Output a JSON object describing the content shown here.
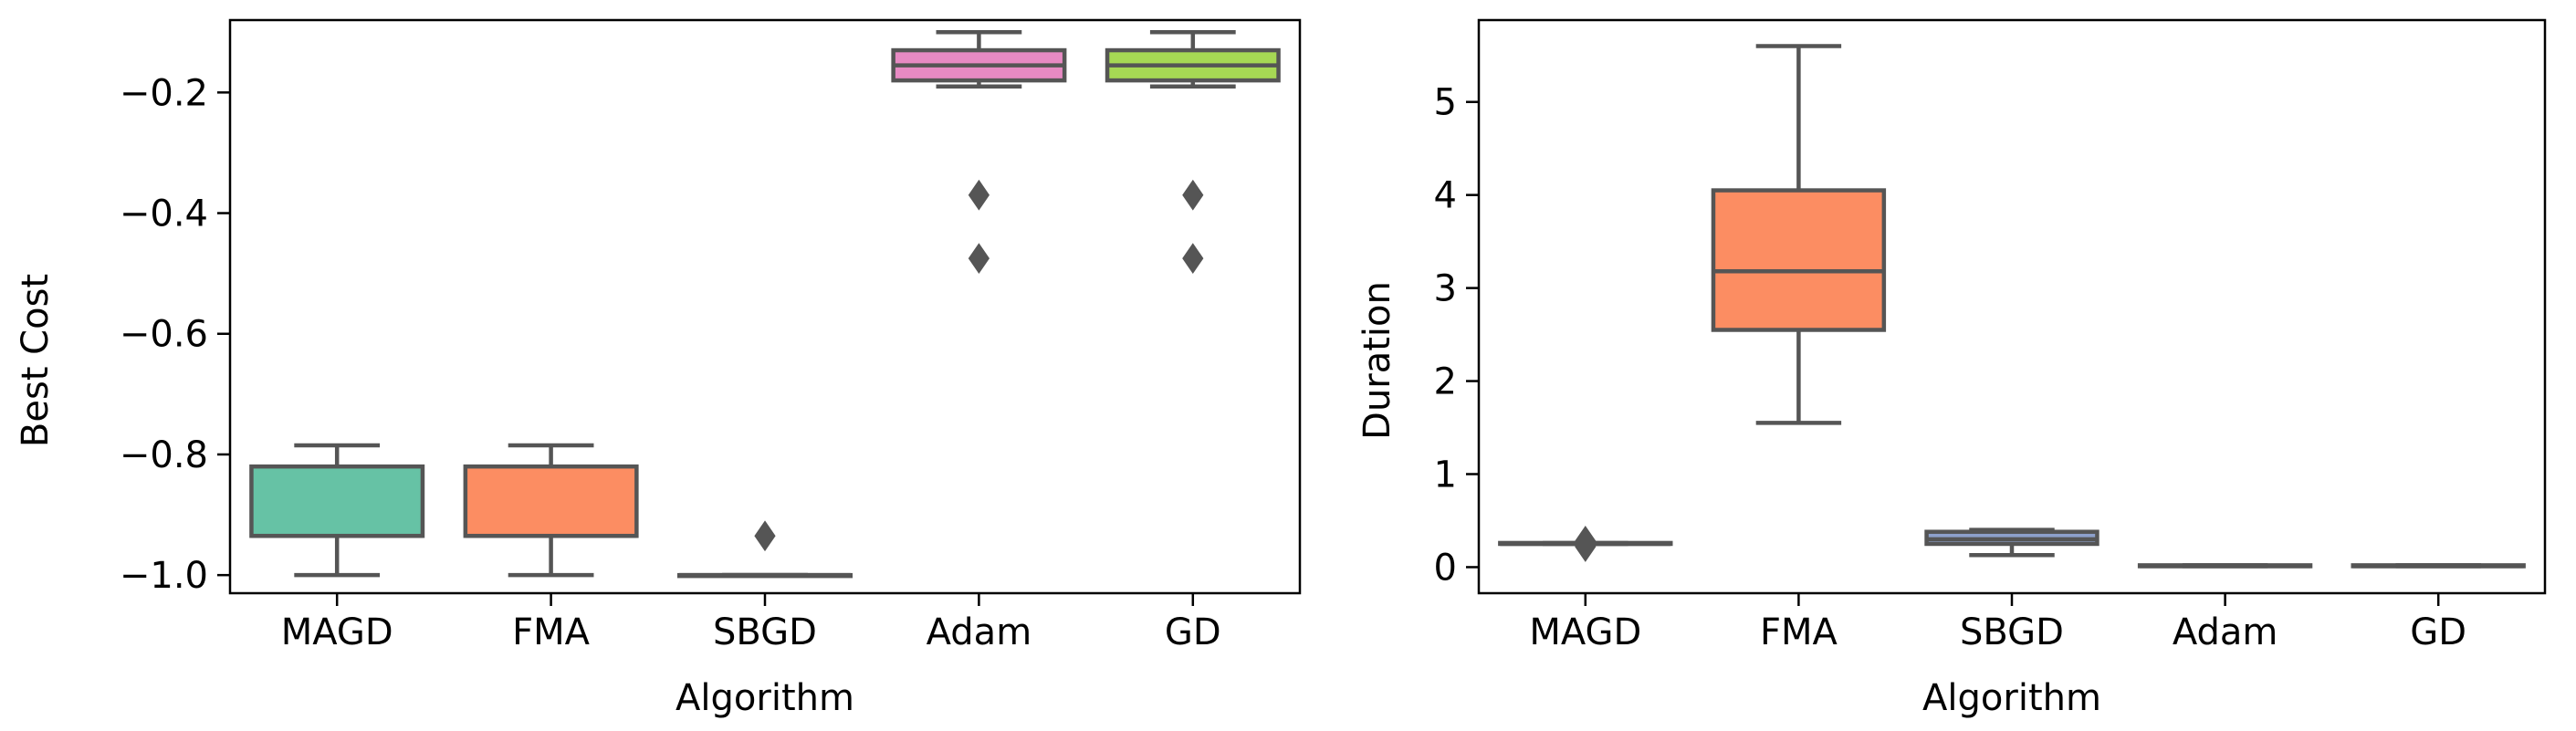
{
  "chart_data": [
    {
      "type": "box",
      "title": "",
      "xlabel": "Algorithm",
      "ylabel": "Best Cost",
      "categories": [
        "MAGD",
        "FMA",
        "SBGD",
        "Adam",
        "GD"
      ],
      "colors": [
        "#66c2a5",
        "#fc8d62",
        "#8da0cb",
        "#e78ac3",
        "#a6d854"
      ],
      "ylim": [
        -1.03,
        -0.08
      ],
      "yticks": [
        -1.0,
        -0.8,
        -0.6,
        -0.4,
        -0.2
      ],
      "ytick_labels": [
        "−1.0",
        "−0.8",
        "−0.6",
        "−0.4",
        "−0.2"
      ],
      "boxes": [
        {
          "name": "MAGD",
          "whisker_low": -1.0,
          "q1": -0.935,
          "median": -0.935,
          "q3": -0.82,
          "whisker_high": -0.785,
          "outliers": []
        },
        {
          "name": "FMA",
          "whisker_low": -1.0,
          "q1": -0.935,
          "median": -0.935,
          "q3": -0.82,
          "whisker_high": -0.785,
          "outliers": []
        },
        {
          "name": "SBGD",
          "whisker_low": -1.0,
          "q1": -1.0,
          "median": -1.0,
          "q3": -1.0,
          "whisker_high": -1.0,
          "outliers": [
            -0.935
          ]
        },
        {
          "name": "Adam",
          "whisker_low": -0.19,
          "q1": -0.18,
          "median": -0.155,
          "q3": -0.13,
          "whisker_high": -0.1,
          "outliers": [
            -0.37,
            -0.475
          ]
        },
        {
          "name": "GD",
          "whisker_low": -0.19,
          "q1": -0.18,
          "median": -0.155,
          "q3": -0.13,
          "whisker_high": -0.1,
          "outliers": [
            -0.37,
            -0.475
          ]
        }
      ]
    },
    {
      "type": "box",
      "title": "",
      "xlabel": "Algorithm",
      "ylabel": "Duration",
      "categories": [
        "MAGD",
        "FMA",
        "SBGD",
        "Adam",
        "GD"
      ],
      "colors": [
        "#66c2a5",
        "#fc8d62",
        "#8da0cb",
        "#e78ac3",
        "#a6d854"
      ],
      "ylim": [
        -0.28,
        5.88
      ],
      "yticks": [
        0,
        1,
        2,
        3,
        4,
        5
      ],
      "ytick_labels": [
        "0",
        "1",
        "2",
        "3",
        "4",
        "5"
      ],
      "boxes": [
        {
          "name": "MAGD",
          "whisker_low": 0.25,
          "q1": 0.25,
          "median": 0.25,
          "q3": 0.26,
          "whisker_high": 0.26,
          "outliers": [
            0.28,
            0.22
          ]
        },
        {
          "name": "FMA",
          "whisker_low": 1.55,
          "q1": 2.55,
          "median": 3.18,
          "q3": 4.05,
          "whisker_high": 5.6,
          "outliers": []
        },
        {
          "name": "SBGD",
          "whisker_low": 0.13,
          "q1": 0.25,
          "median": 0.3,
          "q3": 0.38,
          "whisker_high": 0.4,
          "outliers": []
        },
        {
          "name": "Adam",
          "whisker_low": 0.01,
          "q1": 0.01,
          "median": 0.01,
          "q3": 0.02,
          "whisker_high": 0.02,
          "outliers": []
        },
        {
          "name": "GD",
          "whisker_low": 0.01,
          "q1": 0.01,
          "median": 0.01,
          "q3": 0.02,
          "whisker_high": 0.02,
          "outliers": []
        }
      ]
    }
  ]
}
